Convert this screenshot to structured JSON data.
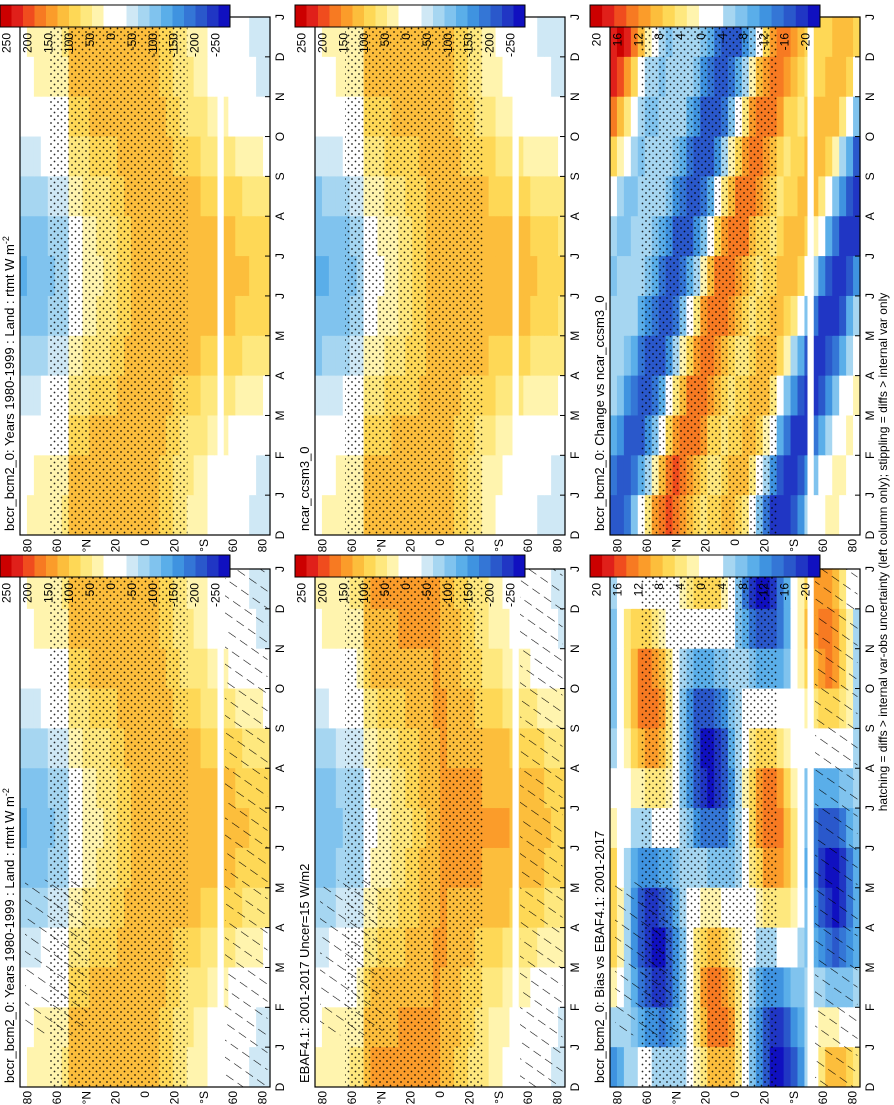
{
  "figure": {
    "footnote": "hatching = diffs > internal var-obs uncertainty (left column only); stippling = diffs > internal var only",
    "orientation": "rotated 90° counter-clockwise",
    "palettes": {
      "abs": [
        "#cc0000",
        "#e0201a",
        "#f04c1e",
        "#f77a22",
        "#fb9c2a",
        "#fcbe3c",
        "#fed856",
        "#fee87e",
        "#fff4ae",
        "#ffffff",
        "#ffffff",
        "#cfe8f5",
        "#a6d6f1",
        "#80c3ee",
        "#5aaee9",
        "#3f93e0",
        "#3476d6",
        "#2a58cb",
        "#2036c4",
        "#1010c0"
      ],
      "diff": [
        "#cc0000",
        "#e0201a",
        "#f04c1e",
        "#f77a22",
        "#fb9c2a",
        "#fcbe3c",
        "#fed856",
        "#fee87e",
        "#fff4ae",
        "#ffffff",
        "#ffffff",
        "#a6d6f1",
        "#80c3ee",
        "#5aaee9",
        "#3f93e0",
        "#3476d6",
        "#2a58cb",
        "#2036c4",
        "#1010c0"
      ]
    }
  },
  "colorbars": {
    "abs": {
      "labels": [
        "250",
        "200",
        "150",
        "100",
        "50",
        "0",
        "-50",
        "-100",
        "-150",
        "-200",
        "-250"
      ]
    },
    "diff": {
      "labels": [
        "20",
        "16",
        "12",
        "8",
        "4",
        "0",
        "-4",
        "-8",
        "-12",
        "-16",
        "-20"
      ]
    }
  },
  "chart_data": [
    {
      "id": "p1",
      "type": "heatmap",
      "title": "bccr_bcm2_0: Years 1980-1999 : Land : rtmt W m",
      "title_sup": "-2",
      "palette": "abs",
      "field": "model",
      "hatch": "left",
      "stipple": true,
      "x": [
        "D",
        "J",
        "F",
        "M",
        "A",
        "M",
        "J",
        "J",
        "A",
        "S",
        "O",
        "N",
        "D",
        "J"
      ],
      "y_ticks": [
        "80",
        "60",
        "°N",
        "20",
        "0",
        "20",
        "°S",
        "60",
        "80"
      ],
      "zlim": [
        -275,
        275
      ]
    },
    {
      "id": "p2",
      "type": "heatmap",
      "title": "bccr_bcm2_0: Years 1980-1999 : Land : rtmt W m",
      "title_sup": "-2",
      "palette": "abs",
      "field": "model",
      "hatch": false,
      "stipple": true,
      "x": [
        "D",
        "J",
        "F",
        "M",
        "A",
        "M",
        "J",
        "J",
        "A",
        "S",
        "O",
        "N",
        "D",
        "J"
      ],
      "y_ticks": [
        "80",
        "60",
        "°N",
        "20",
        "0",
        "20",
        "°S",
        "60",
        "80"
      ],
      "zlim": [
        -275,
        275
      ]
    },
    {
      "id": "p3",
      "type": "heatmap",
      "title": "EBAF4.1: 2001-2017 Uncer=15 W/m2",
      "title_sup": "",
      "palette": "abs",
      "field": "obs",
      "hatch": "left",
      "stipple": true,
      "x": [
        "D",
        "J",
        "F",
        "M",
        "A",
        "M",
        "J",
        "J",
        "A",
        "S",
        "O",
        "N",
        "D",
        "J"
      ],
      "y_ticks": [
        "80",
        "60",
        "°N",
        "20",
        "0",
        "20",
        "°S",
        "60",
        "80"
      ],
      "zlim": [
        -275,
        275
      ]
    },
    {
      "id": "p4",
      "type": "heatmap",
      "title": "ncar_ccsm3_0",
      "title_sup": "",
      "palette": "abs",
      "field": "model2",
      "hatch": false,
      "stipple": true,
      "x": [
        "D",
        "J",
        "F",
        "M",
        "A",
        "M",
        "J",
        "J",
        "A",
        "S",
        "O",
        "N",
        "D",
        "J"
      ],
      "y_ticks": [
        "80",
        "60",
        "°N",
        "20",
        "0",
        "20",
        "°S",
        "60",
        "80"
      ],
      "zlim": [
        -275,
        275
      ]
    },
    {
      "id": "p5",
      "type": "heatmap",
      "title": "bccr_bcm2_0: Bias vs EBAF4.1: 2001-2017",
      "title_sup": "",
      "palette": "diff",
      "field": "bias",
      "hatch": "bias",
      "stipple": true,
      "x": [
        "D",
        "J",
        "F",
        "M",
        "A",
        "M",
        "J",
        "J",
        "A",
        "S",
        "O",
        "N",
        "D",
        "J"
      ],
      "y_ticks": [
        "80",
        "60",
        "°N",
        "20",
        "0",
        "20",
        "°S",
        "60",
        "80"
      ],
      "zlim": [
        -22,
        22
      ]
    },
    {
      "id": "p6",
      "type": "heatmap",
      "title": "bccr_bcm2_0: Change vs ncar_ccsm3_0",
      "title_sup": "",
      "palette": "diff",
      "field": "change",
      "hatch": false,
      "stipple": true,
      "x": [
        "D",
        "J",
        "F",
        "M",
        "A",
        "M",
        "J",
        "J",
        "A",
        "S",
        "O",
        "N",
        "D",
        "J"
      ],
      "y_ticks": [
        "80",
        "60",
        "°N",
        "20",
        "0",
        "20",
        "°S",
        "60",
        "80"
      ],
      "zlim": [
        -22,
        22
      ]
    }
  ]
}
